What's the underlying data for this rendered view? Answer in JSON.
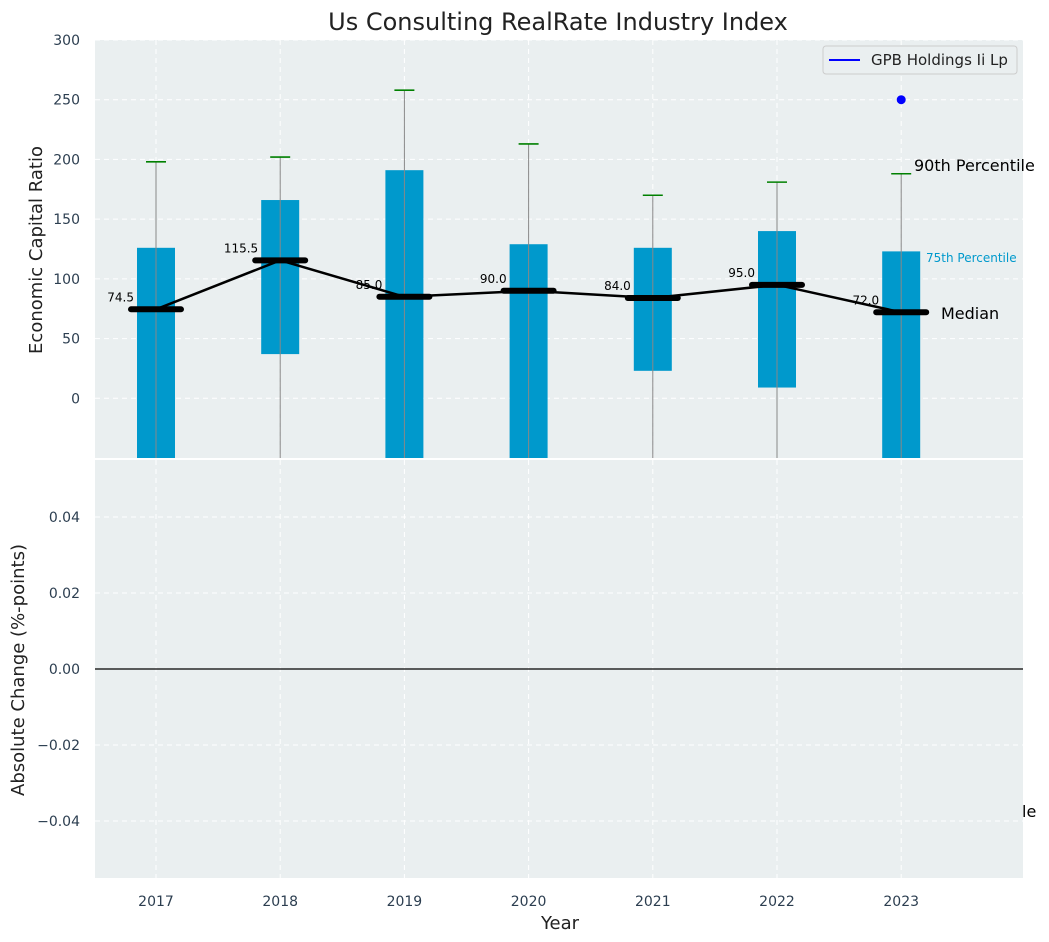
{
  "chart_data": [
    {
      "type": "box",
      "title": "Us Consulting RealRate Industry Index",
      "xlabel": "",
      "ylabel": "Economic Capital Ratio",
      "ylim": [
        -50,
        300
      ],
      "yticks": [
        0,
        50,
        100,
        150,
        200,
        250,
        300
      ],
      "grid": true,
      "categories": [
        "2017",
        "2018",
        "2019",
        "2020",
        "2021",
        "2022",
        "2023"
      ],
      "box_low": [
        -50,
        37,
        -50,
        -50,
        23,
        9,
        -50
      ],
      "box_high": [
        126,
        166,
        191,
        129,
        126,
        140,
        123
      ],
      "whisker_low": [
        -50,
        -50,
        -50,
        -50,
        -50,
        -50,
        -50
      ],
      "whisker_high": [
        198,
        202,
        258,
        213,
        170,
        181,
        188
      ],
      "median": [
        74.5,
        115.5,
        85.0,
        90.0,
        84.0,
        95.0,
        72.0
      ],
      "median_labels": [
        "74.5",
        "115.5",
        "85.0",
        "90.0",
        "84.0",
        "95.0",
        "72.0"
      ],
      "company_series": {
        "name": "GPB Holdings Ii Lp",
        "x": [
          "2023"
        ],
        "y": [
          250
        ]
      },
      "annotations": {
        "p90": "90th Percentile",
        "p75": "75th Percentile",
        "median": "Median"
      },
      "legend": {
        "position": "top-right",
        "label": "GPB Holdings Ii Lp"
      },
      "colors": {
        "box": "#0099cc",
        "whisker": "#888888",
        "cap": "#008000",
        "median": "#000000",
        "company": "#0000ff",
        "background": "#eaeff0",
        "p75_text": "#0099cc"
      }
    },
    {
      "type": "line",
      "xlabel": "Year",
      "ylabel": "Absolute Change (%-points)",
      "ylim": [
        -0.055,
        0.055
      ],
      "yticks": [
        "−0.04",
        "−0.02",
        "0.00",
        "0.02",
        "0.04"
      ],
      "ytick_values": [
        -0.04,
        -0.02,
        0.0,
        0.02,
        0.04
      ],
      "zero_line": true,
      "grid": true,
      "categories": [
        "2017",
        "2018",
        "2019",
        "2020",
        "2021",
        "2022",
        "2023"
      ],
      "stray_text": "le"
    }
  ]
}
